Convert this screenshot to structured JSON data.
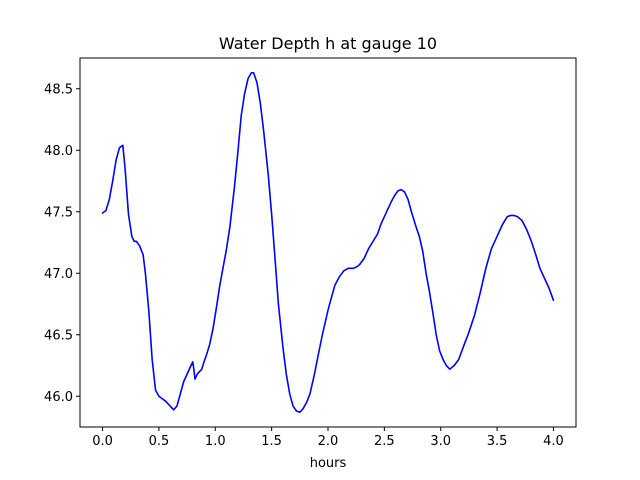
{
  "chart_data": {
    "type": "line",
    "title": "Water Depth h at gauge 10",
    "xlabel": "hours",
    "ylabel": "",
    "xlim": [
      -0.2,
      4.2
    ],
    "ylim": [
      45.75,
      48.75
    ],
    "xticks": [
      0.0,
      0.5,
      1.0,
      1.5,
      2.0,
      2.5,
      3.0,
      3.5,
      4.0
    ],
    "xtick_labels": [
      "0.0",
      "0.5",
      "1.0",
      "1.5",
      "2.0",
      "2.5",
      "3.0",
      "3.5",
      "4.0"
    ],
    "yticks": [
      46.0,
      46.5,
      47.0,
      47.5,
      48.0,
      48.5
    ],
    "ytick_labels": [
      "46.0",
      "46.5",
      "47.0",
      "47.5",
      "48.0",
      "48.5"
    ],
    "grid": false,
    "series": [
      {
        "color": "#0000ff",
        "x": [
          0.0,
          0.03,
          0.06,
          0.09,
          0.12,
          0.15,
          0.18,
          0.2,
          0.23,
          0.26,
          0.28,
          0.3,
          0.33,
          0.36,
          0.38,
          0.41,
          0.44,
          0.47,
          0.5,
          0.53,
          0.56,
          0.6,
          0.63,
          0.66,
          0.69,
          0.72,
          0.75,
          0.78,
          0.8,
          0.81,
          0.82,
          0.84,
          0.86,
          0.88,
          0.9,
          0.92,
          0.95,
          0.98,
          1.01,
          1.04,
          1.07,
          1.1,
          1.13,
          1.17,
          1.2,
          1.23,
          1.26,
          1.29,
          1.32,
          1.34,
          1.37,
          1.4,
          1.43,
          1.47,
          1.5,
          1.53,
          1.56,
          1.6,
          1.63,
          1.66,
          1.69,
          1.72,
          1.75,
          1.78,
          1.81,
          1.84,
          1.88,
          1.91,
          1.95,
          2.0,
          2.03,
          2.06,
          2.1,
          2.14,
          2.18,
          2.22,
          2.25,
          2.28,
          2.32,
          2.36,
          2.4,
          2.44,
          2.47,
          2.5,
          2.53,
          2.56,
          2.59,
          2.62,
          2.65,
          2.68,
          2.71,
          2.74,
          2.78,
          2.81,
          2.84,
          2.87,
          2.9,
          2.93,
          2.96,
          2.99,
          3.02,
          3.05,
          3.08,
          3.12,
          3.16,
          3.2,
          3.25,
          3.3,
          3.35,
          3.4,
          3.45,
          3.5,
          3.55,
          3.59,
          3.62,
          3.65,
          3.68,
          3.72,
          3.76,
          3.8,
          3.84,
          3.88,
          3.92,
          3.96,
          4.0
        ],
        "y": [
          47.49,
          47.51,
          47.6,
          47.75,
          47.92,
          48.02,
          48.04,
          47.85,
          47.48,
          47.3,
          47.26,
          47.26,
          47.22,
          47.15,
          47.0,
          46.7,
          46.3,
          46.05,
          46.0,
          45.98,
          45.96,
          45.92,
          45.89,
          45.92,
          46.02,
          46.12,
          46.18,
          46.24,
          46.28,
          46.22,
          46.14,
          46.18,
          46.2,
          46.22,
          46.28,
          46.33,
          46.42,
          46.55,
          46.72,
          46.9,
          47.05,
          47.2,
          47.38,
          47.7,
          47.98,
          48.28,
          48.46,
          48.58,
          48.63,
          48.63,
          48.55,
          48.38,
          48.15,
          47.8,
          47.48,
          47.12,
          46.75,
          46.4,
          46.18,
          46.02,
          45.92,
          45.88,
          45.87,
          45.9,
          45.95,
          46.02,
          46.18,
          46.32,
          46.5,
          46.7,
          46.8,
          46.9,
          46.97,
          47.02,
          47.04,
          47.04,
          47.05,
          47.07,
          47.12,
          47.2,
          47.26,
          47.32,
          47.4,
          47.46,
          47.52,
          47.58,
          47.63,
          47.67,
          47.68,
          47.66,
          47.6,
          47.5,
          47.38,
          47.3,
          47.18,
          47.0,
          46.85,
          46.68,
          46.5,
          46.37,
          46.3,
          46.25,
          46.22,
          46.25,
          46.3,
          46.4,
          46.52,
          46.66,
          46.84,
          47.04,
          47.2,
          47.3,
          47.4,
          47.46,
          47.47,
          47.47,
          47.46,
          47.43,
          47.36,
          47.27,
          47.16,
          47.04,
          46.96,
          46.88,
          46.78
        ]
      }
    ]
  }
}
